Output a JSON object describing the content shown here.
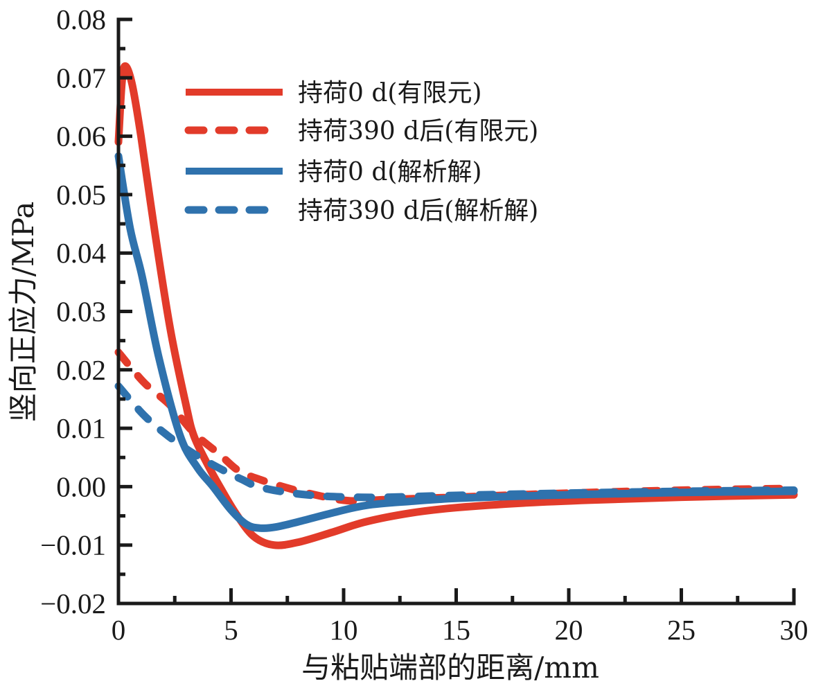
{
  "chart_data": {
    "type": "line",
    "title": "",
    "xlabel": "与粘贴端部的距离/mm",
    "ylabel": "竖向正应力/MPa",
    "xlim": [
      0,
      30
    ],
    "ylim": [
      -0.02,
      0.08
    ],
    "xticks": [
      0,
      5,
      10,
      15,
      20,
      25,
      30
    ],
    "xtick_labels": [
      "0",
      "5",
      "10",
      "15",
      "20",
      "25",
      "30"
    ],
    "yticks": [
      0.08,
      0.07,
      0.06,
      0.05,
      0.04,
      0.03,
      0.02,
      0.01,
      0.0,
      -0.01,
      -0.02
    ],
    "ytick_labels": [
      "0.08",
      "0.07",
      "0.06",
      "0.05",
      "0.04",
      "0.03",
      "0.02",
      "0.01",
      "0.00",
      "−0.01",
      "−0.02"
    ],
    "grid": false,
    "legend_position": "top-center",
    "series": [
      {
        "name": "持荷0 d(有限元)",
        "color": "#e23b2a",
        "style": "solid",
        "x": [
          0,
          0.15,
          0.3,
          0.6,
          1.0,
          1.6,
          2.3,
          3.0,
          3.35,
          4.0,
          4.5,
          5.2,
          6.0,
          6.9,
          8.0,
          9.5,
          11,
          13,
          15,
          18,
          21,
          25,
          30
        ],
        "y": [
          0.059,
          0.069,
          0.072,
          0.069,
          0.06,
          0.044,
          0.027,
          0.014,
          0.0087,
          0.0035,
          0.0,
          -0.0045,
          -0.0085,
          -0.01,
          -0.0095,
          -0.0078,
          -0.006,
          -0.0045,
          -0.0036,
          -0.0028,
          -0.0023,
          -0.0018,
          -0.0014
        ]
      },
      {
        "name": "持荷390 d后(有限元)",
        "color": "#e23b2a",
        "style": "dashed",
        "x": [
          0,
          1.14,
          2.28,
          3.35,
          4.5,
          5.35,
          6.3,
          7.3,
          8.5,
          10.2,
          12,
          15,
          20,
          25,
          30
        ],
        "y": [
          0.023,
          0.0178,
          0.014,
          0.0092,
          0.0055,
          0.0027,
          0.0012,
          0.0,
          -0.0012,
          -0.0024,
          -0.0022,
          -0.0018,
          -0.0011,
          -0.0006,
          -0.0003
        ]
      },
      {
        "name": "持荷0 d(解析解)",
        "color": "#2f72ad",
        "style": "solid",
        "x": [
          0,
          0.52,
          1.05,
          1.8,
          2.74,
          3.5,
          4.2,
          5.0,
          5.7,
          6.3,
          7.0,
          8.0,
          9.5,
          11,
          13,
          15,
          18,
          21,
          25,
          30
        ],
        "y": [
          0.0566,
          0.0442,
          0.036,
          0.022,
          0.0087,
          0.0033,
          0.0,
          -0.004,
          -0.0065,
          -0.0071,
          -0.0069,
          -0.006,
          -0.0045,
          -0.0032,
          -0.0025,
          -0.002,
          -0.0016,
          -0.0013,
          -0.001,
          -0.0008
        ]
      },
      {
        "name": "持荷390 d后(解析解)",
        "color": "#2f72ad",
        "style": "dashed",
        "x": [
          0,
          1.14,
          2.2,
          3.4,
          4.7,
          5.5,
          6.2,
          7.5,
          9.0,
          10.5,
          12,
          15,
          20,
          25,
          30
        ],
        "y": [
          0.0172,
          0.0122,
          0.0087,
          0.0055,
          0.0027,
          0.0012,
          0.0,
          -0.001,
          -0.0016,
          -0.0018,
          -0.0018,
          -0.0015,
          -0.0011,
          -0.0008,
          -0.0006
        ]
      }
    ]
  }
}
